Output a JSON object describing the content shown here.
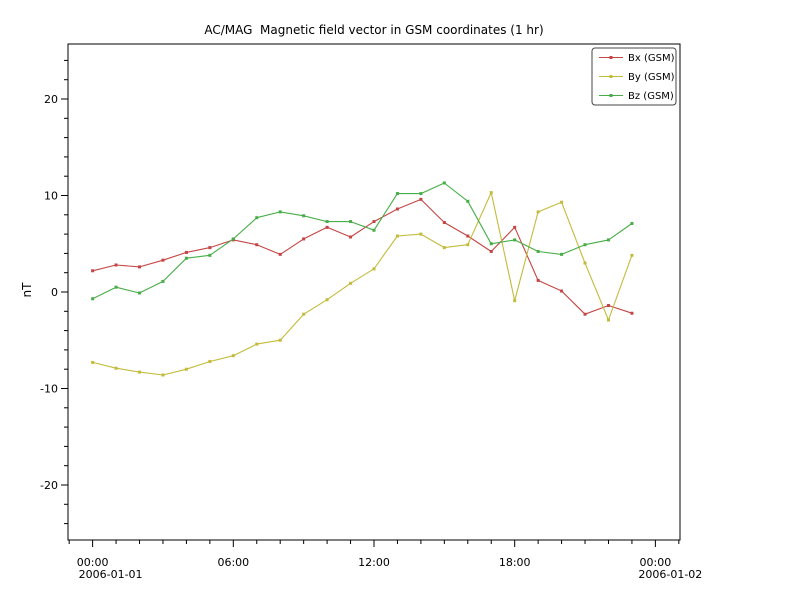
{
  "window": {
    "background": "#ffffff"
  },
  "chart_data": {
    "type": "line",
    "title": "AC/MAG  Magnetic field vector in GSM coordinates (1 hr)",
    "ylabel": "nT",
    "x_unit": "hour of 2006-01-01",
    "x": [
      0,
      1,
      2,
      3,
      4,
      5,
      6,
      7,
      8,
      9,
      10,
      11,
      12,
      13,
      14,
      15,
      16,
      17,
      18,
      19,
      20,
      21,
      22,
      23
    ],
    "series": [
      {
        "name": "Bx (GSM)",
        "color": "#c54545",
        "marker": "square",
        "values": [
          2.2,
          2.8,
          2.6,
          3.3,
          4.1,
          4.6,
          5.4,
          4.9,
          3.9,
          5.5,
          6.7,
          5.7,
          7.3,
          8.6,
          9.6,
          7.2,
          5.8,
          4.2,
          6.7,
          1.2,
          0.1,
          -2.3,
          -1.4,
          -2.2
        ]
      },
      {
        "name": "By (GSM)",
        "color": "#c3bb3b",
        "marker": "square",
        "values": [
          -7.3,
          -7.9,
          -8.3,
          -8.6,
          -8.0,
          -7.2,
          -6.6,
          -5.4,
          -5.0,
          -2.3,
          -0.8,
          0.9,
          2.4,
          5.8,
          6.0,
          4.6,
          4.9,
          10.3,
          -0.9,
          8.3,
          9.3,
          3.0,
          -2.9,
          3.8
        ]
      },
      {
        "name": "Bz (GSM)",
        "color": "#47ad47",
        "marker": "square",
        "values": [
          -0.7,
          0.5,
          -0.1,
          1.1,
          3.5,
          3.8,
          5.5,
          7.7,
          8.3,
          7.9,
          7.3,
          7.3,
          6.4,
          10.2,
          10.2,
          11.3,
          9.4,
          5.0,
          5.4,
          4.2,
          3.9,
          4.9,
          5.4,
          7.1
        ]
      }
    ],
    "xlim_hours": [
      -1.05,
      25.05
    ],
    "ylim": [
      -25.7,
      25.7
    ],
    "y_major_ticks": [
      -20,
      -10,
      0,
      10,
      20
    ],
    "y_minor_step": 2,
    "x_major_ticks": {
      "hours": [
        0,
        6,
        12,
        18,
        24
      ],
      "labels": [
        "00:00",
        "06:00",
        "12:00",
        "18:00",
        "00:00"
      ]
    },
    "x_minor_step_hours": 1,
    "x_start_date_label": "2006-01-01",
    "x_end_date_label": "2006-01-02",
    "legend_position": "upper right",
    "grid": false,
    "axis_color": "#000000"
  }
}
